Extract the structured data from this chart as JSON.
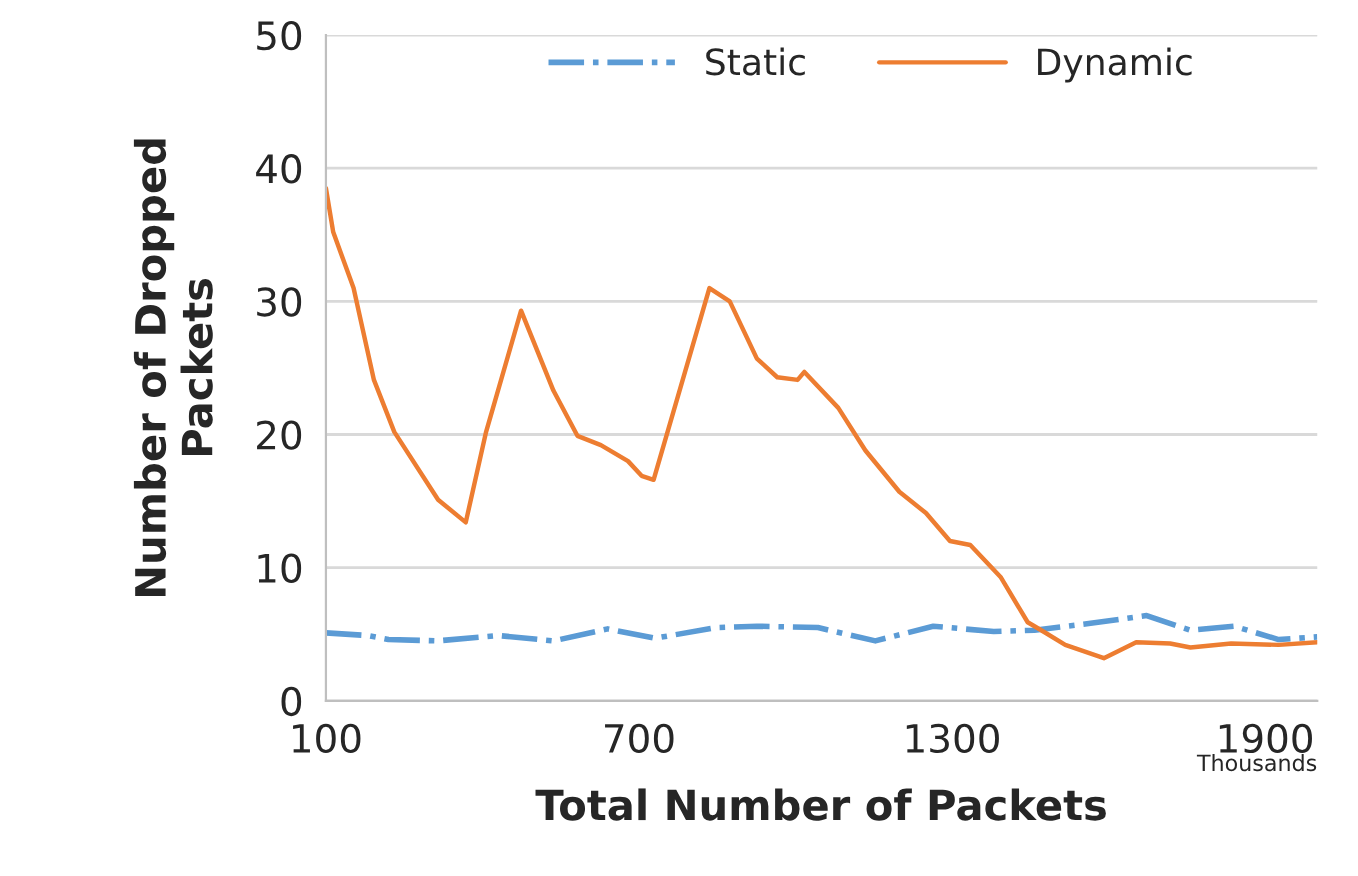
{
  "chart_data": {
    "type": "line",
    "xlabel": "Total Number of Packets",
    "ylabel": "Number of Dropped\nPackets",
    "annotations": [
      "Thousands"
    ],
    "series": [
      {
        "name": "Static",
        "color": "#5b9bd5",
        "line_style": "dashdot",
        "x": [
          100,
          181,
          220,
          314,
          431,
          536,
          640,
          731,
          848,
          926,
          1043,
          1153,
          1264,
          1380,
          1458,
          1562,
          1673,
          1757,
          1841,
          1926,
          2000
        ],
        "values": [
          5.1,
          4.9,
          4.6,
          4.5,
          4.9,
          4.5,
          5.4,
          4.7,
          5.5,
          5.6,
          5.5,
          4.5,
          5.6,
          5.2,
          5.3,
          5.8,
          6.4,
          5.3,
          5.6,
          4.6,
          4.8
        ]
      },
      {
        "name": "Dynamic",
        "color": "#ed7d31",
        "line_style": "solid",
        "x": [
          100,
          114,
          153,
          192,
          231,
          315,
          368,
          407,
          474,
          536,
          582,
          627,
          679,
          705,
          728,
          835,
          874,
          926,
          965,
          1004,
          1017,
          1082,
          1134,
          1199,
          1250,
          1296,
          1335,
          1393,
          1445,
          1471,
          1517,
          1591,
          1653,
          1718,
          1757,
          1835,
          1926,
          2000
        ],
        "values": [
          38.5,
          35.2,
          31,
          24.1,
          20.2,
          15.1,
          13.4,
          20.2,
          29.3,
          23.3,
          19.9,
          19.2,
          18.0,
          16.9,
          16.6,
          31.0,
          30.0,
          25.7,
          24.3,
          24.1,
          24.7,
          22.0,
          18.8,
          15.7,
          14.1,
          12.0,
          11.7,
          9.3,
          5.9,
          5.3,
          4.2,
          3.2,
          4.4,
          4.3,
          4.0,
          4.3,
          4.2,
          4.4
        ]
      }
    ],
    "xlim": [
      100,
      2000
    ],
    "xticks": [
      100,
      700,
      1300,
      1900
    ],
    "ylim": [
      0,
      50
    ],
    "yticks": [
      0,
      10,
      20,
      30,
      40,
      50
    ],
    "grid": "y",
    "legend": "top",
    "marker": "none"
  }
}
